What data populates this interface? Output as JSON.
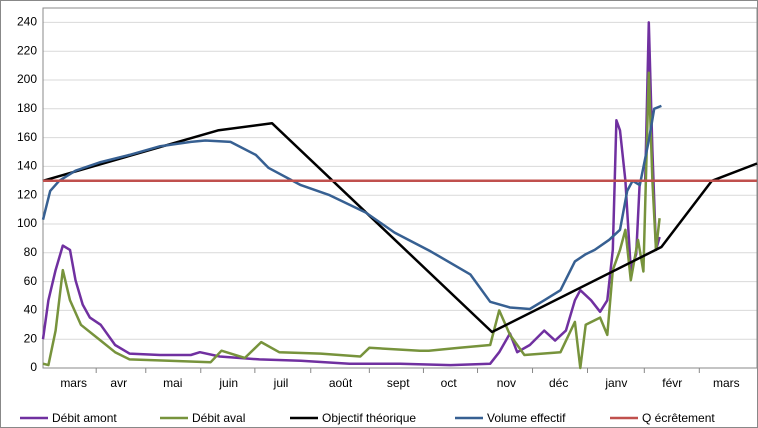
{
  "chart_data": {
    "type": "line",
    "xlim": [
      0,
      396
    ],
    "xticks": [
      {
        "value": 17,
        "label": "mars"
      },
      {
        "value": 42,
        "label": "avr"
      },
      {
        "value": 72,
        "label": "mai"
      },
      {
        "value": 103,
        "label": "juin"
      },
      {
        "value": 132,
        "label": "juil"
      },
      {
        "value": 165,
        "label": "août"
      },
      {
        "value": 197,
        "label": "sept"
      },
      {
        "value": 225,
        "label": "oct"
      },
      {
        "value": 257,
        "label": "nov"
      },
      {
        "value": 286,
        "label": "déc"
      },
      {
        "value": 318,
        "label": "janv"
      },
      {
        "value": 349,
        "label": "févr"
      },
      {
        "value": 379,
        "label": "mars"
      }
    ],
    "ylim": [
      0,
      250
    ],
    "yticks": [
      0,
      20,
      40,
      60,
      80,
      100,
      120,
      140,
      160,
      180,
      200,
      220,
      240
    ],
    "grid": true,
    "legend": "bottom",
    "series": [
      {
        "name": "Débit amont",
        "color": "#7030a0",
        "x": [
          0,
          3,
          7,
          11,
          15,
          18,
          22,
          26,
          32,
          40,
          48,
          65,
          82,
          87,
          98,
          120,
          143,
          170,
          198,
          226,
          248,
          253,
          259,
          263,
          270,
          278,
          284,
          290,
          295,
          298,
          304,
          309,
          313,
          316,
          318,
          320,
          323,
          326,
          329,
          331,
          334,
          336,
          338,
          340,
          342
        ],
        "values": [
          20,
          47,
          68,
          85,
          82,
          61,
          44,
          35,
          30,
          16,
          10,
          9,
          9,
          11,
          8,
          6,
          5,
          3,
          3,
          2,
          3,
          11,
          24,
          11,
          16,
          26,
          19,
          26,
          47,
          54,
          47,
          39,
          47,
          82,
          172,
          165,
          130,
          68,
          79,
          130,
          130,
          240,
          151,
          82,
          91
        ]
      },
      {
        "name": "Débit aval",
        "color": "#77933c",
        "x": [
          0,
          3,
          7,
          11,
          15,
          21,
          32,
          40,
          48,
          70,
          93,
          99,
          112,
          121,
          131,
          154,
          176,
          181,
          209,
          214,
          231,
          248,
          253,
          259,
          267,
          287,
          295,
          298,
          301,
          309,
          313,
          316,
          320,
          323,
          326,
          330,
          333,
          336,
          338,
          340,
          342
        ],
        "values": [
          3,
          2,
          26,
          68,
          47,
          30,
          19,
          11,
          6,
          5,
          4,
          12,
          7,
          18,
          11,
          10,
          8,
          14,
          12,
          12,
          14,
          16,
          40,
          23,
          9,
          11,
          32,
          0,
          30,
          35,
          23,
          68,
          82,
          96,
          61,
          89,
          67,
          205,
          130,
          82,
          104
        ]
      },
      {
        "name": "Objectif théorique",
        "color": "#000000",
        "x": [
          0,
          97,
          127,
          249,
          343,
          371,
          396
        ],
        "values": [
          130,
          165,
          170,
          25,
          84,
          130,
          142
        ]
      },
      {
        "name": "Volume effectif",
        "color": "#376092",
        "x": [
          0,
          4,
          9,
          18,
          32,
          48,
          65,
          82,
          90,
          104,
          118,
          125,
          143,
          159,
          179,
          195,
          215,
          237,
          248,
          259,
          270,
          278,
          287,
          295,
          301,
          306,
          314,
          320,
          324,
          327,
          331,
          336,
          339,
          343
        ],
        "values": [
          103,
          123,
          130,
          137,
          143,
          148,
          154,
          157,
          158,
          157,
          148,
          139,
          127,
          120,
          108,
          94,
          81,
          65,
          46,
          42,
          41,
          47,
          54,
          74,
          79,
          82,
          89,
          96,
          123,
          130,
          127,
          158,
          180,
          182
        ]
      },
      {
        "name": "Q écrêtement",
        "color": "#c0504d",
        "x": [
          0,
          396
        ],
        "values": [
          130,
          130
        ]
      }
    ]
  }
}
